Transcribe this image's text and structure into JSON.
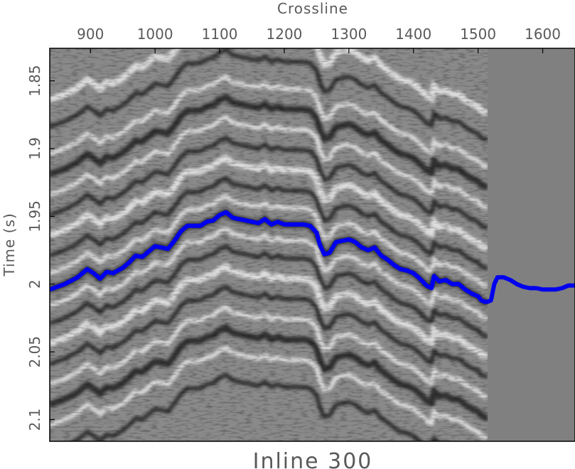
{
  "chart_data": {
    "type": "line",
    "title": "Inline 300",
    "xlabel": "Crossline",
    "ylabel": "Time (s)",
    "x_axis_position": "top",
    "xlim": [
      837,
      1650
    ],
    "ylim": [
      2.116,
      1.826
    ],
    "y_inverted": true,
    "x_ticks": [
      900,
      1000,
      1100,
      1200,
      1300,
      1400,
      1500,
      1600
    ],
    "y_ticks": [
      1.85,
      1.9,
      1.95,
      2,
      2.05,
      2.1
    ],
    "y_tick_labels": [
      "1.85",
      "1.9",
      "1.95",
      "2",
      "2.05",
      "2.1"
    ],
    "background": "grayscale seismic amplitude section",
    "no_data_fill_from_crossline": 1515,
    "grid": false,
    "series": [
      {
        "color": "#0000ee",
        "x": [
          837,
          860,
          880,
          895,
          905,
          915,
          925,
          935,
          950,
          960,
          970,
          980,
          990,
          1000,
          1010,
          1020,
          1030,
          1040,
          1050,
          1060,
          1070,
          1080,
          1090,
          1100,
          1110,
          1120,
          1130,
          1140,
          1150,
          1160,
          1170,
          1180,
          1190,
          1200,
          1210,
          1220,
          1230,
          1240,
          1250,
          1255,
          1262,
          1270,
          1280,
          1290,
          1300,
          1310,
          1320,
          1330,
          1340,
          1350,
          1360,
          1370,
          1380,
          1390,
          1400,
          1410,
          1420,
          1428,
          1432,
          1440,
          1450,
          1460,
          1470,
          1480,
          1490,
          1500,
          1505,
          1510,
          1515,
          1520,
          1525,
          1530,
          1540,
          1550,
          1560,
          1570,
          1580,
          1590,
          1600,
          1610,
          1620,
          1630,
          1640,
          1650
        ],
        "y": [
          2.004,
          2.0,
          1.995,
          1.989,
          1.992,
          1.996,
          1.991,
          1.992,
          1.988,
          1.984,
          1.979,
          1.98,
          1.976,
          1.972,
          1.973,
          1.974,
          1.968,
          1.961,
          1.957,
          1.957,
          1.957,
          1.954,
          1.953,
          1.949,
          1.947,
          1.951,
          1.952,
          1.953,
          1.954,
          1.955,
          1.952,
          1.956,
          1.954,
          1.956,
          1.956,
          1.956,
          1.956,
          1.957,
          1.962,
          1.971,
          1.978,
          1.977,
          1.969,
          1.968,
          1.967,
          1.969,
          1.973,
          1.975,
          1.973,
          1.979,
          1.982,
          1.986,
          1.989,
          1.99,
          1.992,
          1.996,
          2.001,
          2.003,
          1.994,
          1.998,
          1.997,
          2.0,
          2.0,
          2.004,
          2.007,
          2.009,
          2.012,
          2.013,
          2.013,
          2.012,
          2.0,
          1.995,
          1.995,
          1.997,
          2.0,
          2.002,
          2.003,
          2.003,
          2.004,
          2.004,
          2.004,
          2.003,
          2.001,
          2.001
        ]
      }
    ]
  }
}
